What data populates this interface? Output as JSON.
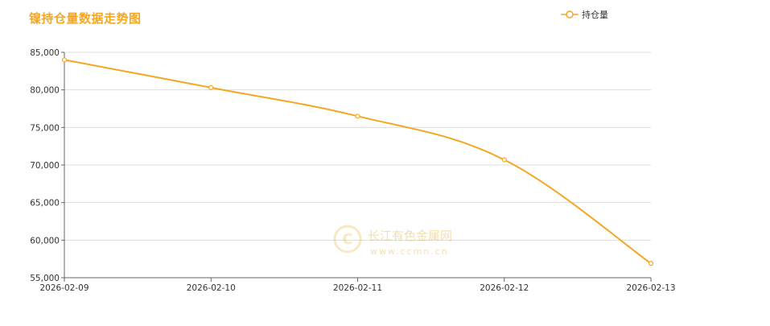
{
  "chart_data": {
    "type": "line",
    "title": "镍持仓量数据走势图",
    "x": [
      "2026-02-09",
      "2026-02-10",
      "2026-02-11",
      "2026-02-12",
      "2026-02-13"
    ],
    "series": [
      {
        "name": "持仓量",
        "values": [
          84000,
          80300,
          76500,
          70700,
          56900
        ],
        "color": "#f5a623"
      }
    ],
    "ylim": [
      55000,
      85000
    ],
    "yticks": [
      55000,
      60000,
      65000,
      70000,
      75000,
      80000,
      85000
    ],
    "ytick_labels": [
      "55,000",
      "60,000",
      "65,000",
      "70,000",
      "75,000",
      "80,000",
      "85,000"
    ],
    "grid": true,
    "legend": "top-right",
    "smooth": true
  },
  "watermark": {
    "name": "长江有色金属网",
    "url": "www.ccmn.cn"
  }
}
